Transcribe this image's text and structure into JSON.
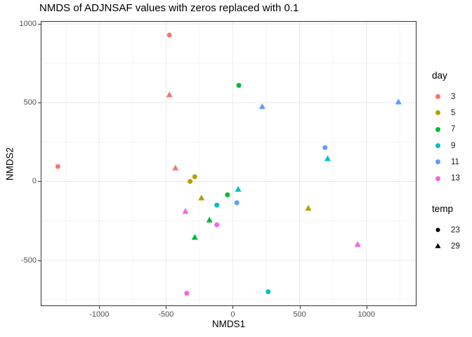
{
  "title": "NMDS of ADJNSAF values with zeros replaced with 0.1",
  "theme": {
    "background": "#FFFFFF",
    "panel_border": "#333333",
    "grid_major": "#EAEAEA",
    "grid_minor": "#F5F5F5",
    "tick_color": "#333333",
    "tick_label_color": "#4D4D4D",
    "text_color": "#000000"
  },
  "chart_data": {
    "type": "scatter",
    "title": "NMDS of ADJNSAF values with zeros replaced with 0.1",
    "xlabel": "NMDS1",
    "ylabel": "NMDS2",
    "xlim": [
      -1433,
      1370
    ],
    "ylim": [
      -787,
      1014
    ],
    "x_major_ticks": [
      -1000,
      -500,
      0,
      500,
      1000
    ],
    "x_minor_ticks": [
      -1250,
      -750,
      -250,
      250,
      750,
      1250
    ],
    "y_major_ticks": [
      -500,
      0,
      500,
      1000
    ],
    "y_minor_ticks": [
      -750,
      -250,
      250,
      750
    ],
    "grid": true,
    "legend_position": "right",
    "color_legend": {
      "title": "day",
      "entries": [
        {
          "label": "3",
          "color": "#F8766D"
        },
        {
          "label": "5",
          "color": "#B79F00"
        },
        {
          "label": "7",
          "color": "#00BA38"
        },
        {
          "label": "9",
          "color": "#00BFC4"
        },
        {
          "label": "11",
          "color": "#619CFF"
        },
        {
          "label": "13",
          "color": "#F564E3"
        }
      ]
    },
    "shape_legend": {
      "title": "temp",
      "entries": [
        {
          "label": "23",
          "shape": "circle"
        },
        {
          "label": "29",
          "shape": "triangle"
        }
      ]
    },
    "points": [
      {
        "day": "3",
        "temp": "23",
        "x": -1310,
        "y": 95
      },
      {
        "day": "3",
        "temp": "23",
        "x": -475,
        "y": 930
      },
      {
        "day": "3",
        "temp": "29",
        "x": -475,
        "y": 550
      },
      {
        "day": "3",
        "temp": "29",
        "x": -430,
        "y": 85
      },
      {
        "day": "5",
        "temp": "23",
        "x": -285,
        "y": 30
      },
      {
        "day": "5",
        "temp": "23",
        "x": -320,
        "y": 0
      },
      {
        "day": "5",
        "temp": "29",
        "x": -235,
        "y": -105
      },
      {
        "day": "5",
        "temp": "29",
        "x": 565,
        "y": -170
      },
      {
        "day": "7",
        "temp": "23",
        "x": 45,
        "y": 610
      },
      {
        "day": "7",
        "temp": "23",
        "x": -40,
        "y": -85
      },
      {
        "day": "7",
        "temp": "29",
        "x": -175,
        "y": -245
      },
      {
        "day": "7",
        "temp": "29",
        "x": -285,
        "y": -355
      },
      {
        "day": "9",
        "temp": "23",
        "x": -120,
        "y": -150
      },
      {
        "day": "9",
        "temp": "23",
        "x": 265,
        "y": -700
      },
      {
        "day": "9",
        "temp": "29",
        "x": 40,
        "y": -50
      },
      {
        "day": "9",
        "temp": "29",
        "x": 710,
        "y": 145
      },
      {
        "day": "11",
        "temp": "23",
        "x": 690,
        "y": 215
      },
      {
        "day": "11",
        "temp": "23",
        "x": 30,
        "y": -135
      },
      {
        "day": "11",
        "temp": "29",
        "x": 1240,
        "y": 505
      },
      {
        "day": "11",
        "temp": "29",
        "x": 220,
        "y": 475
      },
      {
        "day": "13",
        "temp": "23",
        "x": -120,
        "y": -275
      },
      {
        "day": "13",
        "temp": "23",
        "x": -345,
        "y": -710
      },
      {
        "day": "13",
        "temp": "29",
        "x": -355,
        "y": -190
      },
      {
        "day": "13",
        "temp": "29",
        "x": 935,
        "y": -400
      }
    ]
  }
}
